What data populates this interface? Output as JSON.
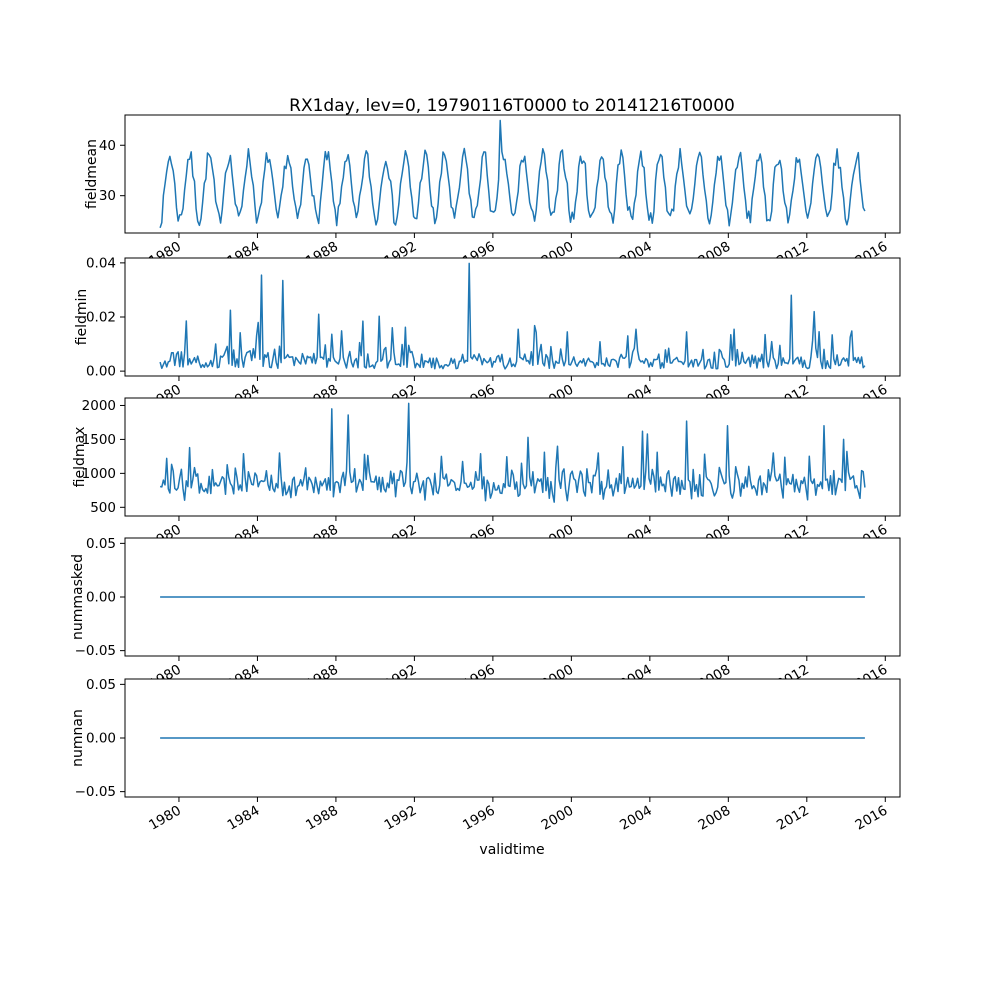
{
  "figure": {
    "title": "RX1day, lev=0, 19790116T0000 to 20141216T0000",
    "xlabel": "validtime",
    "background": "#ffffff",
    "line_color": "#1f77b4",
    "frame_color": "#000000",
    "xlim": [
      1977.25,
      2016.75
    ],
    "xticks": [
      1980,
      1984,
      1988,
      1992,
      1996,
      2000,
      2004,
      2008,
      2012,
      2016
    ],
    "xtick_labels": [
      "1980",
      "1984",
      "1988",
      "1992",
      "1996",
      "2000",
      "2004",
      "2008",
      "2012",
      "2016"
    ],
    "xtick_rotation_deg": 30,
    "xtick_labels_on_every_subplot": true,
    "grid": false,
    "legend": false
  },
  "chart_data": [
    {
      "type": "line",
      "title": "RX1day, lev=0, 19790116T0000 to 20141216T0000",
      "ylabel": "fieldmean",
      "ylim": [
        22.6,
        46.0
      ],
      "yticks": [
        30,
        40
      ],
      "ytick_labels": [
        "30",
        "40"
      ],
      "x_start": 1979.04,
      "x_end": 2014.96,
      "n_points": 432,
      "series": {
        "name": "fieldmean",
        "model": "seasonal",
        "seed": 7,
        "base": 31.6,
        "amplitude": 6.3,
        "peak_month": 6,
        "noise": 1.7,
        "clip": [
          23.6,
          40.7
        ],
        "spikes": [
          [
            1996.37,
            44.9
          ]
        ],
        "summary": "Annual cycle oscillating between ~24 and ~40; single outlier peak ~44.9 in mid-1996"
      }
    },
    {
      "type": "line",
      "ylabel": "fieldmin",
      "ylim": [
        -0.0018,
        0.0418
      ],
      "yticks": [
        0,
        0.02,
        0.04
      ],
      "ytick_labels": [
        "0.00",
        "0.02",
        "0.04"
      ],
      "x_start": 1979.04,
      "x_end": 2014.96,
      "n_points": 432,
      "series": {
        "name": "fieldmin",
        "model": "spiky",
        "seed": 13,
        "base": 0.0008,
        "spread": 0.0045,
        "p1": 0.3,
        "a1": 0.006,
        "p2": 0.06,
        "a2_min": 0.005,
        "a2": 0.009,
        "clip": [
          0.0002,
          0.0398
        ],
        "spikes": [
          [
            1982.6,
            0.0225
          ],
          [
            1984.2,
            0.0355
          ],
          [
            1985.3,
            0.0335
          ],
          [
            1987.1,
            0.021
          ],
          [
            1989.4,
            0.0185
          ],
          [
            1990.9,
            0.016
          ],
          [
            1994.8,
            0.0398
          ],
          [
            1997.3,
            0.0155
          ],
          [
            1999.8,
            0.0145
          ],
          [
            2002.9,
            0.013
          ],
          [
            2005.9,
            0.0145
          ],
          [
            2008.3,
            0.0155
          ],
          [
            2009.9,
            0.0135
          ],
          [
            2011.2,
            0.028
          ],
          [
            2012.4,
            0.022
          ]
        ],
        "summary": "Mostly near 0 (<0.01) with isolated spikes; largest ~0.040 late 1994, ~0.035 in 1984, ~0.033 in 1985, ~0.028 in 2011"
      }
    },
    {
      "type": "line",
      "ylabel": "fieldmax",
      "ylim": [
        372,
        2110
      ],
      "yticks": [
        500,
        1000,
        1500,
        2000
      ],
      "ytick_labels": [
        "500",
        "1000",
        "1500",
        "2000"
      ],
      "x_start": 1979.04,
      "x_end": 2014.96,
      "n_points": 432,
      "series": {
        "name": "fieldmax",
        "model": "noisy",
        "seed": 21,
        "base": 840,
        "spread": 280,
        "p1": 0.1,
        "a1": 430,
        "clip": [
          455,
          2030
        ],
        "spikes": [
          [
            1980.5,
            1380
          ],
          [
            1983.3,
            1290
          ],
          [
            1985.1,
            1300
          ],
          [
            1987.8,
            1950
          ],
          [
            1988.6,
            1860
          ],
          [
            1991.7,
            2030
          ],
          [
            1993.4,
            1250
          ],
          [
            1995.4,
            1290
          ],
          [
            1997.8,
            1530
          ],
          [
            1999.3,
            1400
          ],
          [
            2001.4,
            1300
          ],
          [
            2003.6,
            1620
          ],
          [
            2003.9,
            1580
          ],
          [
            2005.9,
            1770
          ],
          [
            2008.0,
            1700
          ],
          [
            2010.3,
            1300
          ],
          [
            2012.9,
            1700
          ],
          [
            2013.9,
            1500
          ]
        ],
        "summary": "Noisy series around 600-1300 with spikes near 1950 (1987-88), 2030 (1991-92), 1770 (2006), 1700 (2008, 2013)"
      }
    },
    {
      "type": "line",
      "ylabel": "nummasked",
      "ylim": [
        -0.055,
        0.055
      ],
      "yticks": [
        -0.05,
        0,
        0.05
      ],
      "ytick_labels": [
        "−0.05",
        "0.00",
        "0.05"
      ],
      "x_start": 1979.04,
      "x_end": 2014.96,
      "n_points": 432,
      "series": {
        "name": "nummasked",
        "model": "constant",
        "value": 0,
        "summary": "Constant 0 for the whole period"
      }
    },
    {
      "type": "line",
      "ylabel": "numnan",
      "ylim": [
        -0.055,
        0.055
      ],
      "yticks": [
        -0.05,
        0,
        0.05
      ],
      "ytick_labels": [
        "−0.05",
        "0.00",
        "0.05"
      ],
      "x_start": 1979.04,
      "x_end": 2014.96,
      "n_points": 432,
      "series": {
        "name": "numnan",
        "model": "constant",
        "value": 0,
        "summary": "Constant 0 for the whole period"
      }
    }
  ]
}
